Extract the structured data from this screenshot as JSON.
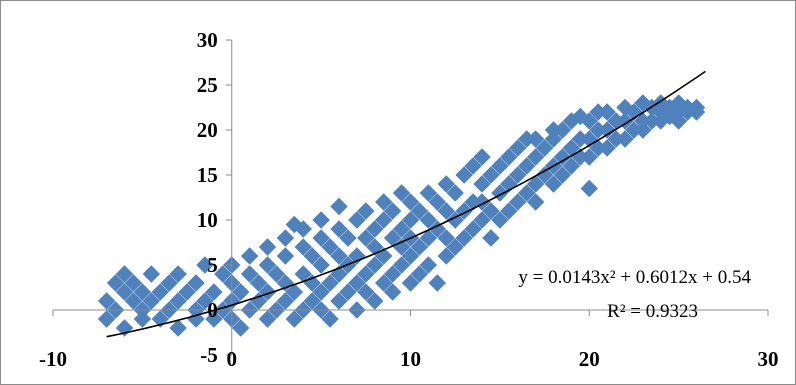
{
  "chart_data": {
    "type": "scatter",
    "title": "",
    "xlabel": "",
    "ylabel": "",
    "xlim": [
      -10,
      30
    ],
    "ylim": [
      -5,
      30
    ],
    "x_ticks": [
      -10,
      0,
      10,
      20,
      30
    ],
    "y_ticks": [
      -5,
      0,
      5,
      10,
      15,
      20,
      25,
      30
    ],
    "x_tick_labels": [
      "-10",
      "0",
      "10",
      "20",
      "30"
    ],
    "y_tick_labels": [
      "-5",
      "0",
      "5",
      "10",
      "15",
      "20",
      "25",
      "30"
    ],
    "grid": false,
    "legend": "none",
    "marker": "diamond",
    "marker_color": "#4f81bd",
    "trendline_color": "#000000",
    "trendline": {
      "type": "polynomial",
      "order": 2,
      "coefficients": {
        "a": 0.0143,
        "b": 0.6012,
        "c": 0.54
      },
      "equation": "y = 0.0143x² + 0.6012x + 0.54",
      "r_squared": "R² = 0.9323",
      "x_range": [
        -7,
        26.5
      ]
    },
    "series": [
      {
        "points": [
          [
            -7,
            1
          ],
          [
            -7,
            -1
          ],
          [
            -6.5,
            3
          ],
          [
            -6.5,
            0
          ],
          [
            -6,
            4
          ],
          [
            -6,
            2
          ],
          [
            -6,
            -2
          ],
          [
            -5.5,
            1
          ],
          [
            -5.5,
            3
          ],
          [
            -5,
            0
          ],
          [
            -5,
            2
          ],
          [
            -5,
            -1
          ],
          [
            -4.5,
            4
          ],
          [
            -4.5,
            1
          ],
          [
            -4,
            2
          ],
          [
            -4,
            -1
          ],
          [
            -3.5,
            3
          ],
          [
            -3.5,
            0
          ],
          [
            -3,
            1
          ],
          [
            -3,
            -2
          ],
          [
            -3,
            4
          ],
          [
            -2.5,
            2
          ],
          [
            -2,
            0
          ],
          [
            -2,
            3
          ],
          [
            -2,
            -1
          ],
          [
            -1.5,
            1
          ],
          [
            -1.5,
            5
          ],
          [
            -1,
            2
          ],
          [
            -1,
            -1
          ],
          [
            -0.5,
            4
          ],
          [
            -0.5,
            0
          ],
          [
            0,
            1
          ],
          [
            0,
            3
          ],
          [
            0,
            5
          ],
          [
            0,
            -1
          ],
          [
            0.5,
            2
          ],
          [
            0.5,
            -2
          ],
          [
            1,
            0
          ],
          [
            1,
            4
          ],
          [
            1,
            6
          ],
          [
            1.5,
            1
          ],
          [
            1.5,
            3
          ],
          [
            2,
            -1
          ],
          [
            2,
            2
          ],
          [
            2,
            5
          ],
          [
            2,
            7
          ],
          [
            2.5,
            0
          ],
          [
            2.5,
            4
          ],
          [
            3,
            1
          ],
          [
            3,
            3
          ],
          [
            3,
            6
          ],
          [
            3,
            8
          ],
          [
            3.5,
            -1
          ],
          [
            3.5,
            2
          ],
          [
            3.5,
            9.5
          ],
          [
            4,
            0
          ],
          [
            4,
            4
          ],
          [
            4,
            7
          ],
          [
            4,
            9
          ],
          [
            4.5,
            1
          ],
          [
            4.5,
            3
          ],
          [
            4.5,
            6
          ],
          [
            5,
            0
          ],
          [
            5,
            2
          ],
          [
            5,
            5
          ],
          [
            5,
            8
          ],
          [
            5,
            10
          ],
          [
            5.5,
            -1
          ],
          [
            5.5,
            3
          ],
          [
            5.5,
            7
          ],
          [
            6,
            1
          ],
          [
            6,
            4
          ],
          [
            6,
            6
          ],
          [
            6,
            9
          ],
          [
            6,
            11.5
          ],
          [
            6.5,
            2
          ],
          [
            6.5,
            5
          ],
          [
            6.5,
            8
          ],
          [
            7,
            0
          ],
          [
            7,
            3
          ],
          [
            7,
            6
          ],
          [
            7,
            10
          ],
          [
            7.5,
            2
          ],
          [
            7.5,
            4
          ],
          [
            7.5,
            8
          ],
          [
            7.5,
            11
          ],
          [
            8,
            1
          ],
          [
            8,
            5
          ],
          [
            8,
            7
          ],
          [
            8,
            9
          ],
          [
            8.5,
            3
          ],
          [
            8.5,
            6
          ],
          [
            8.5,
            10
          ],
          [
            8.5,
            12
          ],
          [
            9,
            2
          ],
          [
            9,
            4
          ],
          [
            9,
            8
          ],
          [
            9,
            11
          ],
          [
            9.5,
            5
          ],
          [
            9.5,
            7
          ],
          [
            9.5,
            9
          ],
          [
            9.5,
            13
          ],
          [
            10,
            3
          ],
          [
            10,
            6
          ],
          [
            10,
            8
          ],
          [
            10,
            10
          ],
          [
            10,
            12
          ],
          [
            10.5,
            4
          ],
          [
            10.5,
            7
          ],
          [
            10.5,
            11
          ],
          [
            11,
            5
          ],
          [
            11,
            8
          ],
          [
            11,
            10
          ],
          [
            11,
            13
          ],
          [
            11.5,
            3
          ],
          [
            11.5,
            9
          ],
          [
            11.5,
            12
          ],
          [
            12,
            6
          ],
          [
            12,
            8
          ],
          [
            12,
            11
          ],
          [
            12,
            14
          ],
          [
            12.5,
            7
          ],
          [
            12.5,
            10
          ],
          [
            12.5,
            13
          ],
          [
            13,
            8
          ],
          [
            13,
            11
          ],
          [
            13,
            15
          ],
          [
            13.5,
            9
          ],
          [
            13.5,
            12
          ],
          [
            13.5,
            16
          ],
          [
            14,
            10
          ],
          [
            14,
            12
          ],
          [
            14,
            14
          ],
          [
            14,
            17
          ],
          [
            14.5,
            8
          ],
          [
            14.5,
            11
          ],
          [
            14.5,
            15
          ],
          [
            15,
            10
          ],
          [
            15,
            13
          ],
          [
            15,
            16
          ],
          [
            15.5,
            11
          ],
          [
            15.5,
            14
          ],
          [
            15.5,
            17
          ],
          [
            16,
            12
          ],
          [
            16,
            15
          ],
          [
            16,
            18
          ],
          [
            16.5,
            13
          ],
          [
            16.5,
            16
          ],
          [
            16.5,
            19
          ],
          [
            17,
            12
          ],
          [
            17,
            14
          ],
          [
            17,
            17
          ],
          [
            17,
            19
          ],
          [
            17.5,
            15
          ],
          [
            17.5,
            18
          ],
          [
            18,
            14
          ],
          [
            18,
            16
          ],
          [
            18,
            19
          ],
          [
            18,
            20
          ],
          [
            18.5,
            15
          ],
          [
            18.5,
            17
          ],
          [
            18.5,
            20
          ],
          [
            19,
            16
          ],
          [
            19,
            18
          ],
          [
            19,
            21
          ],
          [
            19.5,
            17
          ],
          [
            19.5,
            19
          ],
          [
            19.5,
            21.5
          ],
          [
            20,
            13.5
          ],
          [
            20,
            17
          ],
          [
            20,
            19
          ],
          [
            20,
            21
          ],
          [
            20.5,
            18
          ],
          [
            20.5,
            20
          ],
          [
            20.5,
            22
          ],
          [
            21,
            18
          ],
          [
            21,
            20
          ],
          [
            21,
            22
          ],
          [
            21.5,
            19
          ],
          [
            21.5,
            21
          ],
          [
            22,
            19
          ],
          [
            22,
            21
          ],
          [
            22,
            22.5
          ],
          [
            22.5,
            20
          ],
          [
            22.5,
            22
          ],
          [
            23,
            20
          ],
          [
            23,
            21
          ],
          [
            23,
            23
          ],
          [
            23.5,
            21
          ],
          [
            23.5,
            22.5
          ],
          [
            24,
            21
          ],
          [
            24,
            22
          ],
          [
            24,
            23
          ],
          [
            24.5,
            21.5
          ],
          [
            24.5,
            22.5
          ],
          [
            25,
            21
          ],
          [
            25,
            22
          ],
          [
            25,
            23
          ],
          [
            25.5,
            22
          ],
          [
            25.5,
            22.5
          ],
          [
            26,
            22
          ],
          [
            26,
            22.5
          ]
        ]
      }
    ]
  }
}
